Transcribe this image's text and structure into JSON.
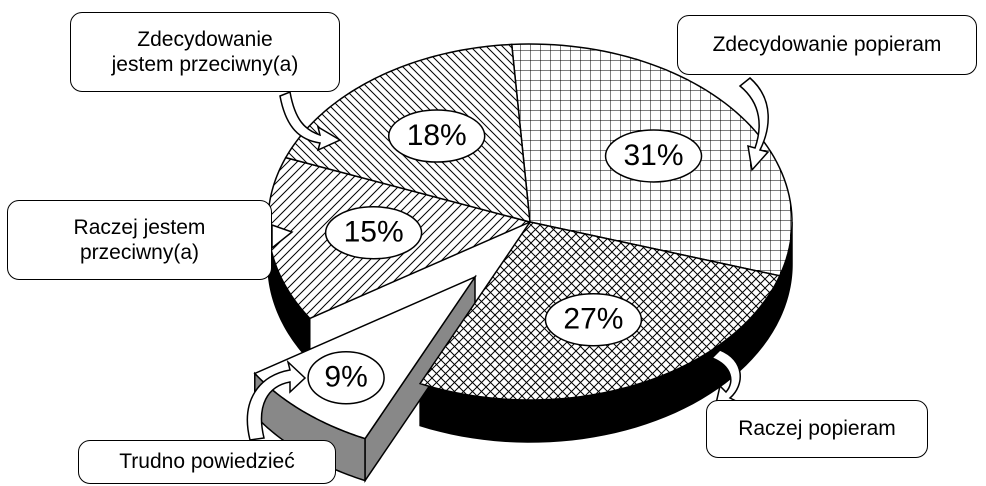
{
  "chart_data": {
    "type": "pie",
    "categories": [
      "Zdecydowanie popieram",
      "Raczej popieram",
      "Trudno powiedzieć",
      "Raczej jestem przeciwny(a)",
      "Zdecydowanie jestem przeciwny(a)"
    ],
    "values": [
      31,
      27,
      9,
      15,
      18
    ],
    "value_labels": [
      "31%",
      "27%",
      "9%",
      "15%",
      "18%"
    ]
  }
}
